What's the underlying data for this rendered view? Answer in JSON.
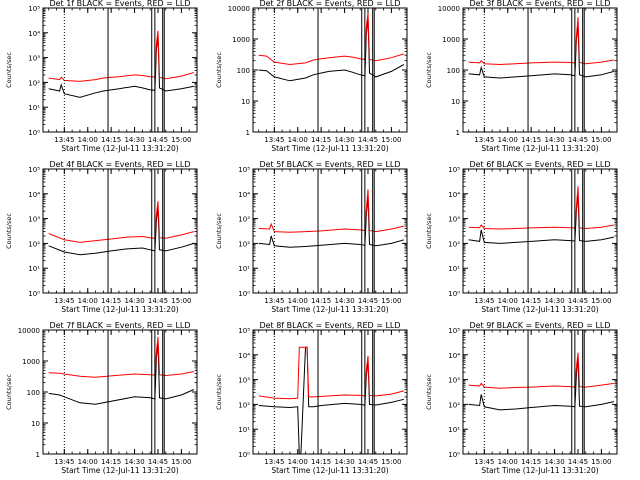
{
  "figure": {
    "x_tick_labels": [
      "13:45",
      "14:00",
      "14:15",
      "14:30",
      "14:45",
      "15:00"
    ],
    "x_label": "Start Time (12-Jul-11 13:31:20)",
    "y_label": "Counts/sec",
    "colors": {
      "events": "#000000",
      "lld": "#ff0000",
      "axes": "#000000"
    }
  },
  "chart_data": [
    {
      "type": "line",
      "title": "Det 1f BLACK = Events, RED = LLD",
      "yscale": "log",
      "ylim": [
        1,
        100000
      ],
      "y_ticks": [
        1,
        10,
        100,
        1000,
        10000,
        100000
      ],
      "y_tick_labels": [
        "10⁰",
        "10¹",
        "10²",
        "10³",
        "10⁴",
        "10⁵"
      ],
      "xlim": [
        "13:31:20",
        "15:10:00"
      ],
      "x": [
        "13:35",
        "13:42",
        "13:43",
        "13:45",
        "13:55",
        "14:05",
        "14:10",
        "14:15",
        "14:20",
        "14:30",
        "14:35",
        "14:40",
        "14:43",
        "14:44",
        "14:45",
        "14:46",
        "14:50",
        "15:00",
        "15:08"
      ],
      "series": [
        {
          "name": "BLACK = Events",
          "values": [
            55,
            45,
            80,
            35,
            25,
            38,
            45,
            50,
            55,
            70,
            60,
            50,
            48,
            2000,
            8000,
            60,
            45,
            55,
            70
          ]
        },
        {
          "name": "RED = LLD",
          "values": [
            150,
            130,
            160,
            120,
            110,
            130,
            150,
            160,
            170,
            200,
            190,
            170,
            165,
            3500,
            12000,
            160,
            140,
            180,
            250
          ]
        }
      ],
      "vertical_lines": [
        "13:45",
        "14:13",
        "14:41",
        "14:43",
        "14:48",
        "14:49"
      ]
    },
    {
      "type": "line",
      "title": "Det 2f BLACK = Events, RED = LLD",
      "yscale": "log",
      "ylim": [
        1,
        10000
      ],
      "y_ticks": [
        1,
        10,
        100,
        1000,
        10000
      ],
      "y_tick_labels": [
        "1",
        "10",
        "100",
        "1000",
        "10000"
      ],
      "xlim": [
        "13:31:20",
        "15:10:00"
      ],
      "x": [
        "13:35",
        "13:40",
        "13:45",
        "13:55",
        "14:05",
        "14:10",
        "14:15",
        "14:20",
        "14:30",
        "14:35",
        "14:40",
        "14:43",
        "14:44",
        "14:45",
        "14:46",
        "14:50",
        "15:00",
        "15:08"
      ],
      "series": [
        {
          "name": "BLACK = Events",
          "values": [
            100,
            95,
            60,
            45,
            55,
            70,
            80,
            90,
            100,
            85,
            70,
            65,
            1500,
            5000,
            80,
            60,
            90,
            150
          ]
        },
        {
          "name": "RED = LLD",
          "values": [
            300,
            280,
            180,
            150,
            170,
            210,
            230,
            250,
            280,
            260,
            230,
            220,
            2500,
            7000,
            220,
            200,
            250,
            330
          ]
        }
      ],
      "vertical_lines": [
        "13:45",
        "14:13",
        "14:41",
        "14:43",
        "14:48",
        "14:49"
      ]
    },
    {
      "type": "line",
      "title": "Det 3f BLACK = Events, RED = LLD",
      "yscale": "log",
      "ylim": [
        1,
        10000
      ],
      "y_ticks": [
        1,
        10,
        100,
        1000,
        10000
      ],
      "y_tick_labels": [
        "1",
        "10",
        "100",
        "1000",
        "10000"
      ],
      "xlim": [
        "13:31:20",
        "15:10:00"
      ],
      "x": [
        "13:35",
        "13:42",
        "13:43",
        "13:45",
        "13:55",
        "14:05",
        "14:15",
        "14:30",
        "14:40",
        "14:43",
        "14:44",
        "14:45",
        "14:46",
        "14:50",
        "15:00",
        "15:08"
      ],
      "series": [
        {
          "name": "BLACK = Events",
          "values": [
            75,
            70,
            120,
            60,
            55,
            60,
            65,
            75,
            70,
            65,
            900,
            3000,
            70,
            60,
            70,
            90
          ]
        },
        {
          "name": "RED = LLD",
          "values": [
            180,
            170,
            200,
            160,
            150,
            160,
            170,
            180,
            175,
            170,
            1200,
            5000,
            175,
            160,
            180,
            210
          ]
        }
      ],
      "vertical_lines": [
        "13:45",
        "14:13",
        "14:41",
        "14:43",
        "14:48",
        "14:49"
      ]
    },
    {
      "type": "line",
      "title": "Det 4f BLACK = Events, RED = LLD",
      "yscale": "log",
      "ylim": [
        1,
        100000
      ],
      "y_ticks": [
        1,
        10,
        100,
        1000,
        10000,
        100000
      ],
      "y_tick_labels": [
        "10⁰",
        "10¹",
        "10²",
        "10³",
        "10⁴",
        "10⁵"
      ],
      "xlim": [
        "13:31:20",
        "15:10:00"
      ],
      "x": [
        "13:35",
        "13:45",
        "13:55",
        "14:05",
        "14:15",
        "14:25",
        "14:35",
        "14:40",
        "14:43",
        "14:44",
        "14:45",
        "14:46",
        "14:50",
        "15:00",
        "15:08"
      ],
      "series": [
        {
          "name": "BLACK = Events",
          "values": [
            80,
            45,
            35,
            40,
            50,
            60,
            65,
            55,
            50,
            800,
            3000,
            55,
            50,
            70,
            100
          ]
        },
        {
          "name": "RED = LLD",
          "values": [
            250,
            140,
            110,
            130,
            150,
            180,
            190,
            170,
            160,
            1500,
            5000,
            170,
            160,
            220,
            300
          ]
        }
      ],
      "vertical_lines": [
        "13:45",
        "14:13",
        "14:41",
        "14:43",
        "14:48",
        "14:49"
      ]
    },
    {
      "type": "line",
      "title": "Det 5f BLACK = Events, RED = LLD",
      "yscale": "log",
      "ylim": [
        1,
        100000
      ],
      "y_ticks": [
        1,
        10,
        100,
        1000,
        10000,
        100000
      ],
      "y_tick_labels": [
        "10⁰",
        "10¹",
        "10²",
        "10³",
        "10⁴",
        "10⁵"
      ],
      "xlim": [
        "13:31:20",
        "15:10:00"
      ],
      "x": [
        "13:35",
        "13:42",
        "13:43",
        "13:45",
        "13:55",
        "14:05",
        "14:15",
        "14:30",
        "14:40",
        "14:43",
        "14:44",
        "14:45",
        "14:46",
        "14:50",
        "15:00",
        "15:08"
      ],
      "series": [
        {
          "name": "BLACK = Events",
          "values": [
            100,
            90,
            200,
            80,
            70,
            75,
            85,
            100,
            90,
            85,
            1500,
            8000,
            90,
            80,
            100,
            140
          ]
        },
        {
          "name": "RED = LLD",
          "values": [
            400,
            380,
            600,
            300,
            280,
            300,
            320,
            380,
            350,
            330,
            2500,
            15000,
            330,
            300,
            380,
            500
          ]
        }
      ],
      "vertical_lines": [
        "13:45",
        "14:13",
        "14:41",
        "14:43",
        "14:48",
        "14:49"
      ]
    },
    {
      "type": "line",
      "title": "Det 6f BLACK = Events, RED = LLD",
      "yscale": "log",
      "ylim": [
        1,
        100000
      ],
      "y_ticks": [
        1,
        10,
        100,
        1000,
        10000,
        100000
      ],
      "y_tick_labels": [
        "10⁰",
        "10¹",
        "10²",
        "10³",
        "10⁴",
        "10⁵"
      ],
      "xlim": [
        "13:31:20",
        "15:10:00"
      ],
      "x": [
        "13:35",
        "13:42",
        "13:43",
        "13:45",
        "13:55",
        "14:05",
        "14:15",
        "14:30",
        "14:40",
        "14:43",
        "14:44",
        "14:45",
        "14:46",
        "14:50",
        "15:00",
        "15:08"
      ],
      "series": [
        {
          "name": "BLACK = Events",
          "values": [
            140,
            120,
            350,
            110,
            100,
            110,
            120,
            140,
            130,
            125,
            2000,
            10000,
            130,
            120,
            140,
            180
          ]
        },
        {
          "name": "RED = LLD",
          "values": [
            450,
            430,
            550,
            400,
            380,
            400,
            420,
            450,
            430,
            420,
            3000,
            20000,
            420,
            400,
            450,
            550
          ]
        }
      ],
      "vertical_lines": [
        "13:45",
        "14:13",
        "14:41",
        "14:43",
        "14:48",
        "14:49"
      ]
    },
    {
      "type": "line",
      "title": "Det 7f BLACK = Events, RED = LLD",
      "yscale": "log",
      "ylim": [
        1,
        10000
      ],
      "y_ticks": [
        1,
        10,
        100,
        1000,
        10000
      ],
      "y_tick_labels": [
        "1",
        "10",
        "100",
        "1000",
        "10000"
      ],
      "xlim": [
        "13:31:20",
        "15:10:00"
      ],
      "x": [
        "13:35",
        "13:42",
        "13:45",
        "13:55",
        "14:05",
        "14:15",
        "14:30",
        "14:40",
        "14:43",
        "14:44",
        "14:45",
        "14:46",
        "14:50",
        "15:00",
        "15:08"
      ],
      "series": [
        {
          "name": "BLACK = Events",
          "values": [
            90,
            80,
            70,
            45,
            40,
            50,
            70,
            65,
            60,
            1200,
            4000,
            65,
            60,
            80,
            120
          ]
        },
        {
          "name": "RED = LLD",
          "values": [
            420,
            400,
            380,
            320,
            300,
            330,
            380,
            360,
            350,
            2000,
            6000,
            360,
            340,
            380,
            460
          ]
        }
      ],
      "vertical_lines": [
        "13:45",
        "14:13",
        "14:41",
        "14:43",
        "14:48",
        "14:49"
      ]
    },
    {
      "type": "line",
      "title": "Det 8f BLACK = Events, RED = LLD",
      "yscale": "log",
      "ylim": [
        1,
        100000
      ],
      "y_ticks": [
        1,
        10,
        100,
        1000,
        10000,
        100000
      ],
      "y_tick_labels": [
        "10⁰",
        "10¹",
        "10²",
        "10³",
        "10⁴",
        "10⁵"
      ],
      "xlim": [
        "13:31:20",
        "15:10:00"
      ],
      "x": [
        "13:35",
        "13:45",
        "13:55",
        "14:00",
        "14:01",
        "14:02",
        "14:05",
        "14:06",
        "14:07",
        "14:10",
        "14:15",
        "14:30",
        "14:40",
        "14:43",
        "14:44",
        "14:45",
        "14:46",
        "14:50",
        "15:00",
        "15:08"
      ],
      "series": [
        {
          "name": "BLACK = Events",
          "values": [
            90,
            80,
            75,
            80,
            1,
            1,
            20000,
            20000,
            80,
            80,
            90,
            110,
            100,
            95,
            1500,
            6000,
            100,
            95,
            120,
            160
          ]
        },
        {
          "name": "RED = LLD",
          "values": [
            220,
            180,
            170,
            180,
            20000,
            20000,
            20000,
            20000,
            200,
            200,
            210,
            240,
            230,
            220,
            2500,
            9000,
            230,
            220,
            260,
            350
          ]
        }
      ],
      "vertical_lines": [
        "13:45",
        "14:13",
        "14:41",
        "14:43",
        "14:48",
        "14:49"
      ]
    },
    {
      "type": "line",
      "title": "Det 9f BLACK = Events, RED = LLD",
      "yscale": "log",
      "ylim": [
        1,
        100000
      ],
      "y_ticks": [
        1,
        10,
        100,
        1000,
        10000,
        100000
      ],
      "y_tick_labels": [
        "10⁰",
        "10¹",
        "10²",
        "10³",
        "10⁴",
        "10⁵"
      ],
      "xlim": [
        "13:31:20",
        "15:10:00"
      ],
      "x": [
        "13:35",
        "13:42",
        "13:43",
        "13:45",
        "13:55",
        "14:05",
        "14:15",
        "14:30",
        "14:40",
        "14:43",
        "14:44",
        "14:45",
        "14:46",
        "14:50",
        "15:00",
        "15:08"
      ],
      "series": [
        {
          "name": "BLACK = Events",
          "values": [
            100,
            90,
            250,
            80,
            60,
            65,
            75,
            90,
            85,
            80,
            1500,
            8000,
            85,
            80,
            100,
            130
          ]
        },
        {
          "name": "RED = LLD",
          "values": [
            600,
            550,
            700,
            500,
            450,
            480,
            500,
            550,
            520,
            500,
            3000,
            12000,
            520,
            500,
            600,
            700
          ]
        }
      ],
      "vertical_lines": [
        "13:45",
        "14:13",
        "14:41",
        "14:43",
        "14:48",
        "14:49"
      ]
    }
  ]
}
